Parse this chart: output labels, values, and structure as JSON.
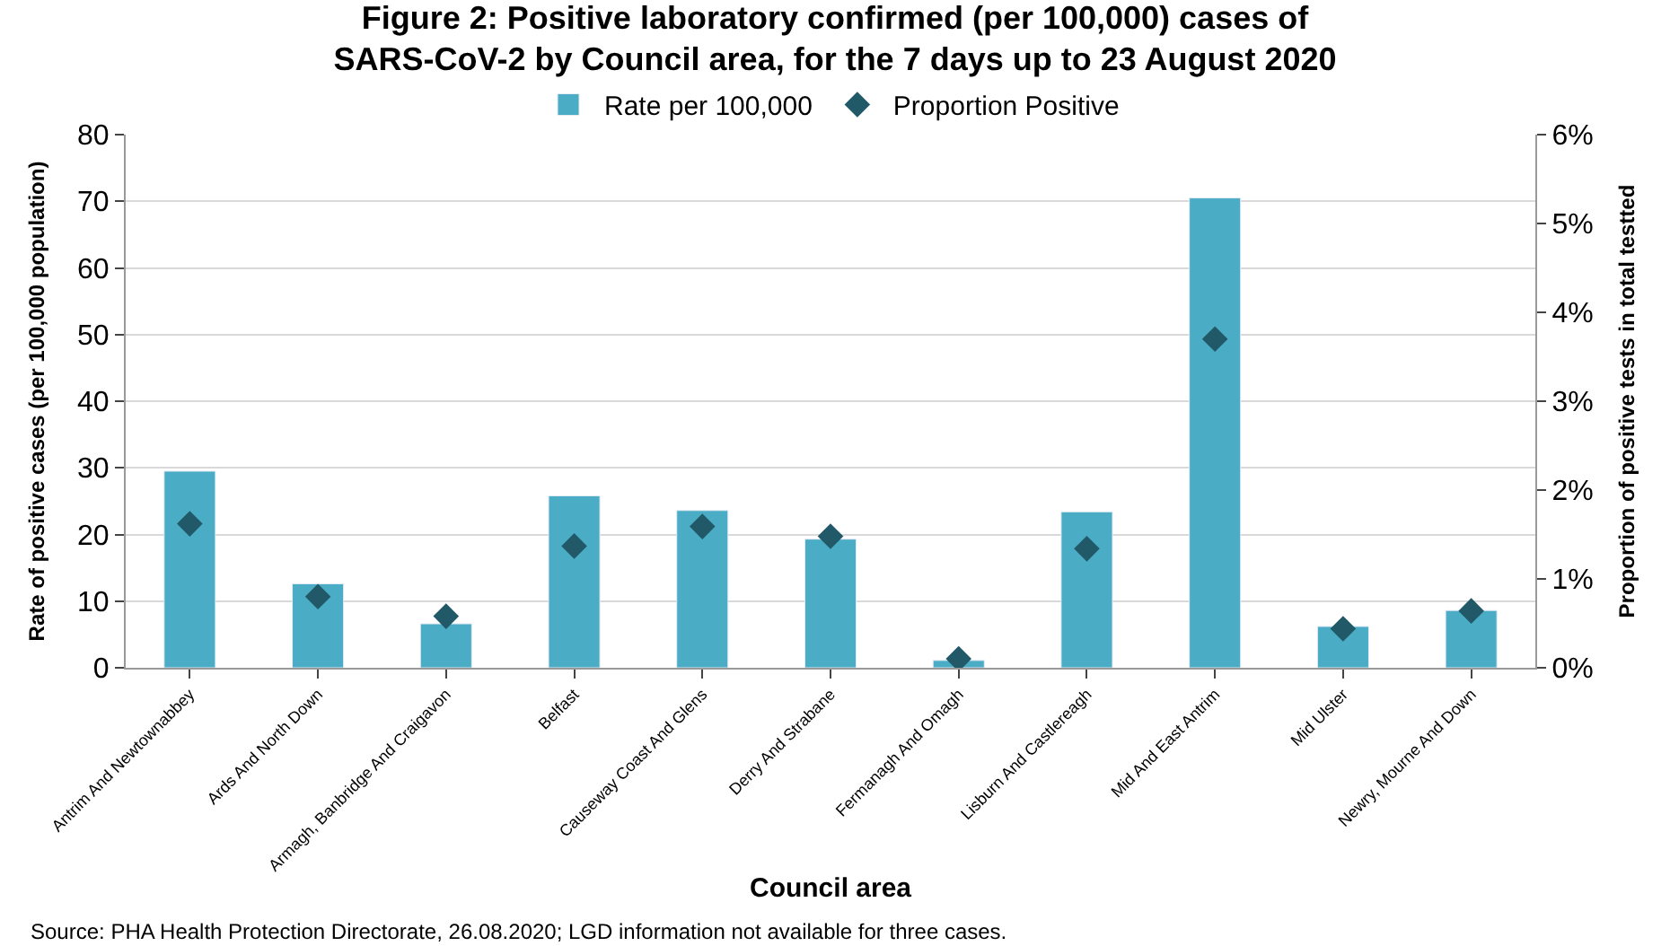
{
  "chart_data": {
    "type": "bar",
    "title": "Figure 2: Positive laboratory confirmed (per 100,000) cases of\nSARS-CoV-2 by Council area, for the 7 days up to 23 August 2020",
    "xlabel": "Council area",
    "ylabel": "Rate of positive cases (per 100,000 population)",
    "y2label": "Proportion of positive tests in total testted",
    "categories": [
      "Antrim And Newtownabbey",
      "Ards And North Down",
      "Armagh, Banbridge And Craigavon",
      "Belfast",
      "Causeway Coast And Glens",
      "Derry And Strabane",
      "Fermanagh And Omagh",
      "Lisburn And Castlereagh",
      "Mid And East Antrim",
      "Mid Ulster",
      "Newry, Mourne And Down"
    ],
    "series": [
      {
        "name": "Rate per 100,000",
        "color": "#4bacc6",
        "values": [
          29.5,
          12.6,
          6.6,
          25.8,
          23.6,
          19.3,
          1.1,
          23.4,
          70.5,
          6.2,
          8.6
        ]
      },
      {
        "name": "Proportion Positive",
        "type": "scatter",
        "axis": "y2",
        "color": "#215968",
        "marker": "diamond",
        "values": [
          1.62,
          0.8,
          0.58,
          1.37,
          1.59,
          1.48,
          0.1,
          1.34,
          3.7,
          0.44,
          0.64
        ]
      }
    ],
    "ylim": [
      0,
      80
    ],
    "yticks": [
      0,
      10,
      20,
      30,
      40,
      50,
      60,
      70,
      80
    ],
    "y2lim": [
      0,
      6
    ],
    "y2ticks": [
      {
        "value": 0,
        "label": "0%"
      },
      {
        "value": 1,
        "label": "1%"
      },
      {
        "value": 2,
        "label": "2%"
      },
      {
        "value": 3,
        "label": "3%"
      },
      {
        "value": 4,
        "label": "4%"
      },
      {
        "value": 5,
        "label": "5%"
      },
      {
        "value": 6,
        "label": "6%"
      }
    ],
    "grid": "y",
    "legend": "top",
    "annotations": [
      "Source: PHA Health Protection Directorate, 26.08.2020; LGD information not available for three cases."
    ]
  }
}
